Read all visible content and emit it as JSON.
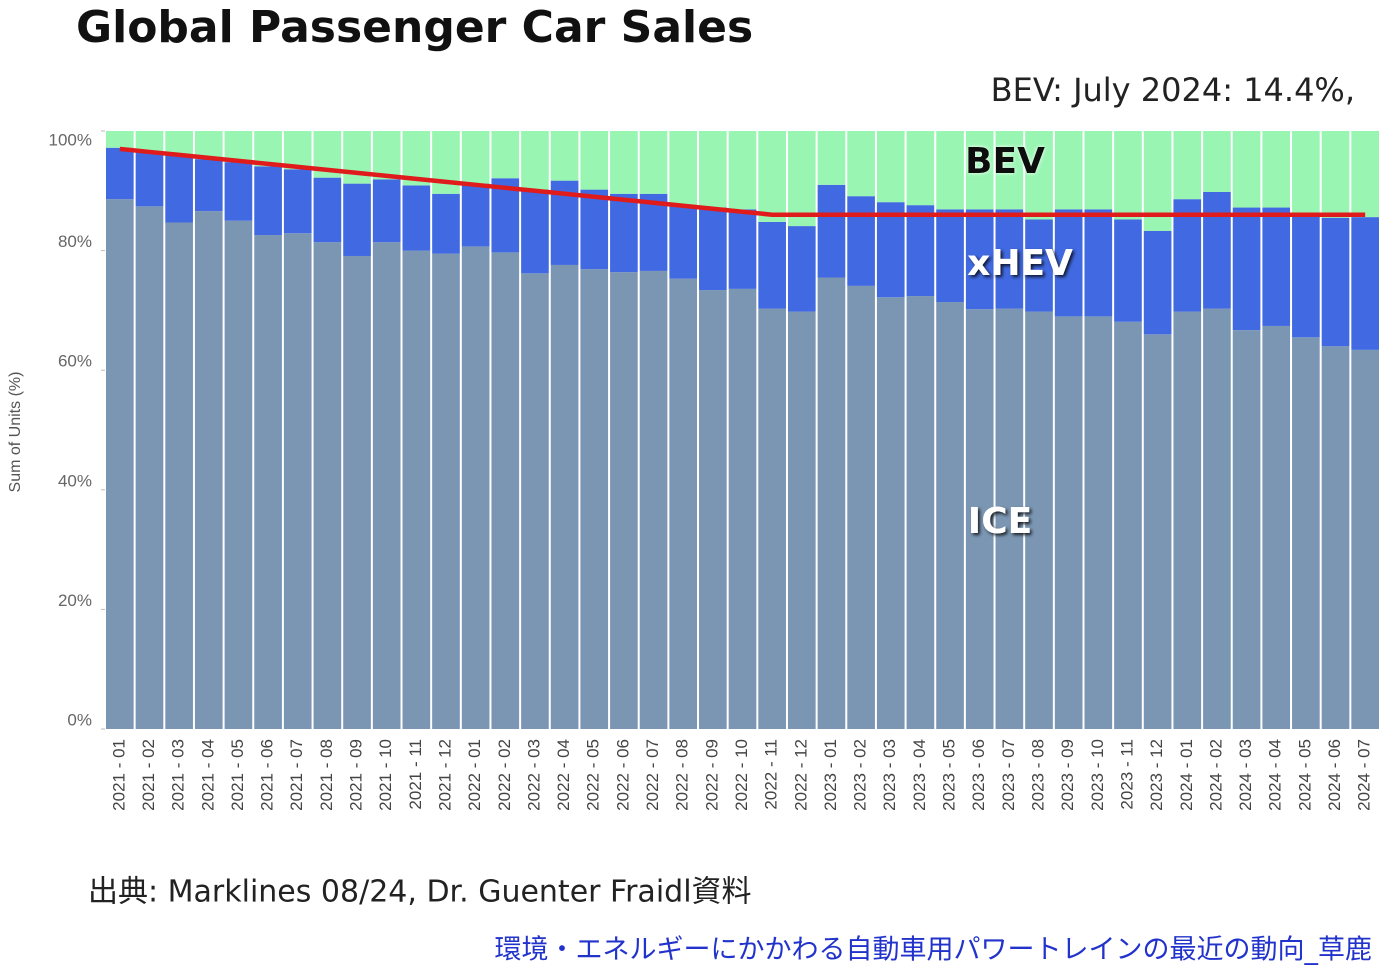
{
  "chart_data": {
    "type": "stacked_bar",
    "title": "Global Passenger Car Sales",
    "subtitle": "BEV:  July 2024: 14.4%,",
    "y_label": "Sum of Units (%)",
    "source": "出典:  Marklines 08/24, Dr. Guenter Fraidl資料",
    "footer": "環境・エネルギーにかかわる自動車用パワートレインの最近の動向_草鹿",
    "ylim": [
      0,
      100
    ],
    "yticks": [
      {
        "value": 0,
        "label": "0%"
      },
      {
        "value": 20,
        "label": "20%"
      },
      {
        "value": 40,
        "label": "40%"
      },
      {
        "value": 60,
        "label": "60%"
      },
      {
        "value": 80,
        "label": "80%"
      },
      {
        "value": 100,
        "label": "100%"
      }
    ],
    "categories": [
      "2021 - 01",
      "2021 - 02",
      "2021 - 03",
      "2021 - 04",
      "2021 - 05",
      "2021 - 06",
      "2021 - 07",
      "2021 - 08",
      "2021 - 09",
      "2021 - 10",
      "2021 - 11",
      "2021 - 12",
      "2022 - 01",
      "2022 - 02",
      "2022 - 03",
      "2022 - 04",
      "2022 - 05",
      "2022 - 06",
      "2022 - 07",
      "2022 - 08",
      "2022 - 09",
      "2022 - 10",
      "2022 - 11",
      "2022 - 12",
      "2023 - 01",
      "2023 - 02",
      "2023 - 03",
      "2023 - 04",
      "2023 - 05",
      "2023 - 06",
      "2023 - 07",
      "2023 - 08",
      "2023 - 09",
      "2023 - 10",
      "2023 - 11",
      "2023 - 12",
      "2024 - 01",
      "2024 - 02",
      "2024 - 03",
      "2024 - 04",
      "2024 - 05",
      "2024 - 06",
      "2024 - 07"
    ],
    "series": [
      {
        "name": "ICE",
        "color": "#7b96b3",
        "values": [
          88.6,
          87.4,
          84.7,
          86.6,
          85.0,
          82.6,
          82.9,
          81.4,
          79.1,
          81.4,
          80.0,
          79.5,
          80.7,
          79.7,
          76.2,
          77.6,
          76.9,
          76.4,
          76.6,
          75.3,
          73.4,
          73.6,
          70.3,
          69.8,
          75.5,
          74.1,
          72.2,
          72.4,
          71.4,
          70.2,
          70.3,
          69.8,
          69.0,
          69.0,
          68.1,
          66.0,
          69.8,
          70.3,
          66.7,
          67.4,
          65.5,
          64.0,
          63.4
        ]
      },
      {
        "name": "xHEV",
        "color": "#4169e1",
        "values": [
          8.6,
          9.2,
          11.3,
          8.7,
          9.8,
          11.5,
          10.7,
          10.8,
          12.1,
          10.5,
          10.9,
          10.0,
          10.5,
          12.4,
          14.0,
          14.1,
          13.3,
          13.1,
          12.9,
          12.3,
          13.8,
          13.3,
          14.5,
          14.3,
          15.5,
          15.0,
          15.9,
          15.2,
          15.5,
          16.7,
          16.6,
          15.4,
          17.9,
          17.9,
          17.1,
          17.3,
          18.8,
          19.5,
          20.5,
          19.8,
          20.4,
          21.5,
          22.2
        ]
      },
      {
        "name": "BEV",
        "color": "#98f5b2",
        "values": [
          2.8,
          3.4,
          4.0,
          4.7,
          5.2,
          5.9,
          6.4,
          7.8,
          8.8,
          8.1,
          9.1,
          10.5,
          8.8,
          7.9,
          9.8,
          8.3,
          9.8,
          10.5,
          10.5,
          12.4,
          12.8,
          13.1,
          15.2,
          15.9,
          9.0,
          10.9,
          11.9,
          12.4,
          13.1,
          13.1,
          13.1,
          14.8,
          13.1,
          13.1,
          14.8,
          16.7,
          11.4,
          10.2,
          12.8,
          12.8,
          14.1,
          14.5,
          14.4
        ]
      }
    ],
    "trend": {
      "color": "#e01b1b",
      "values": [
        97,
        96.5,
        96,
        95.5,
        95,
        94.5,
        94,
        93.5,
        93,
        92.5,
        92,
        91.5,
        91,
        90.5,
        90,
        89.5,
        89,
        88.5,
        88,
        87.5,
        87,
        86.5,
        86,
        86,
        86,
        86,
        86,
        86,
        86,
        86,
        86,
        86,
        86,
        86,
        86,
        86,
        86,
        86,
        86,
        86,
        86,
        86,
        86
      ]
    }
  }
}
